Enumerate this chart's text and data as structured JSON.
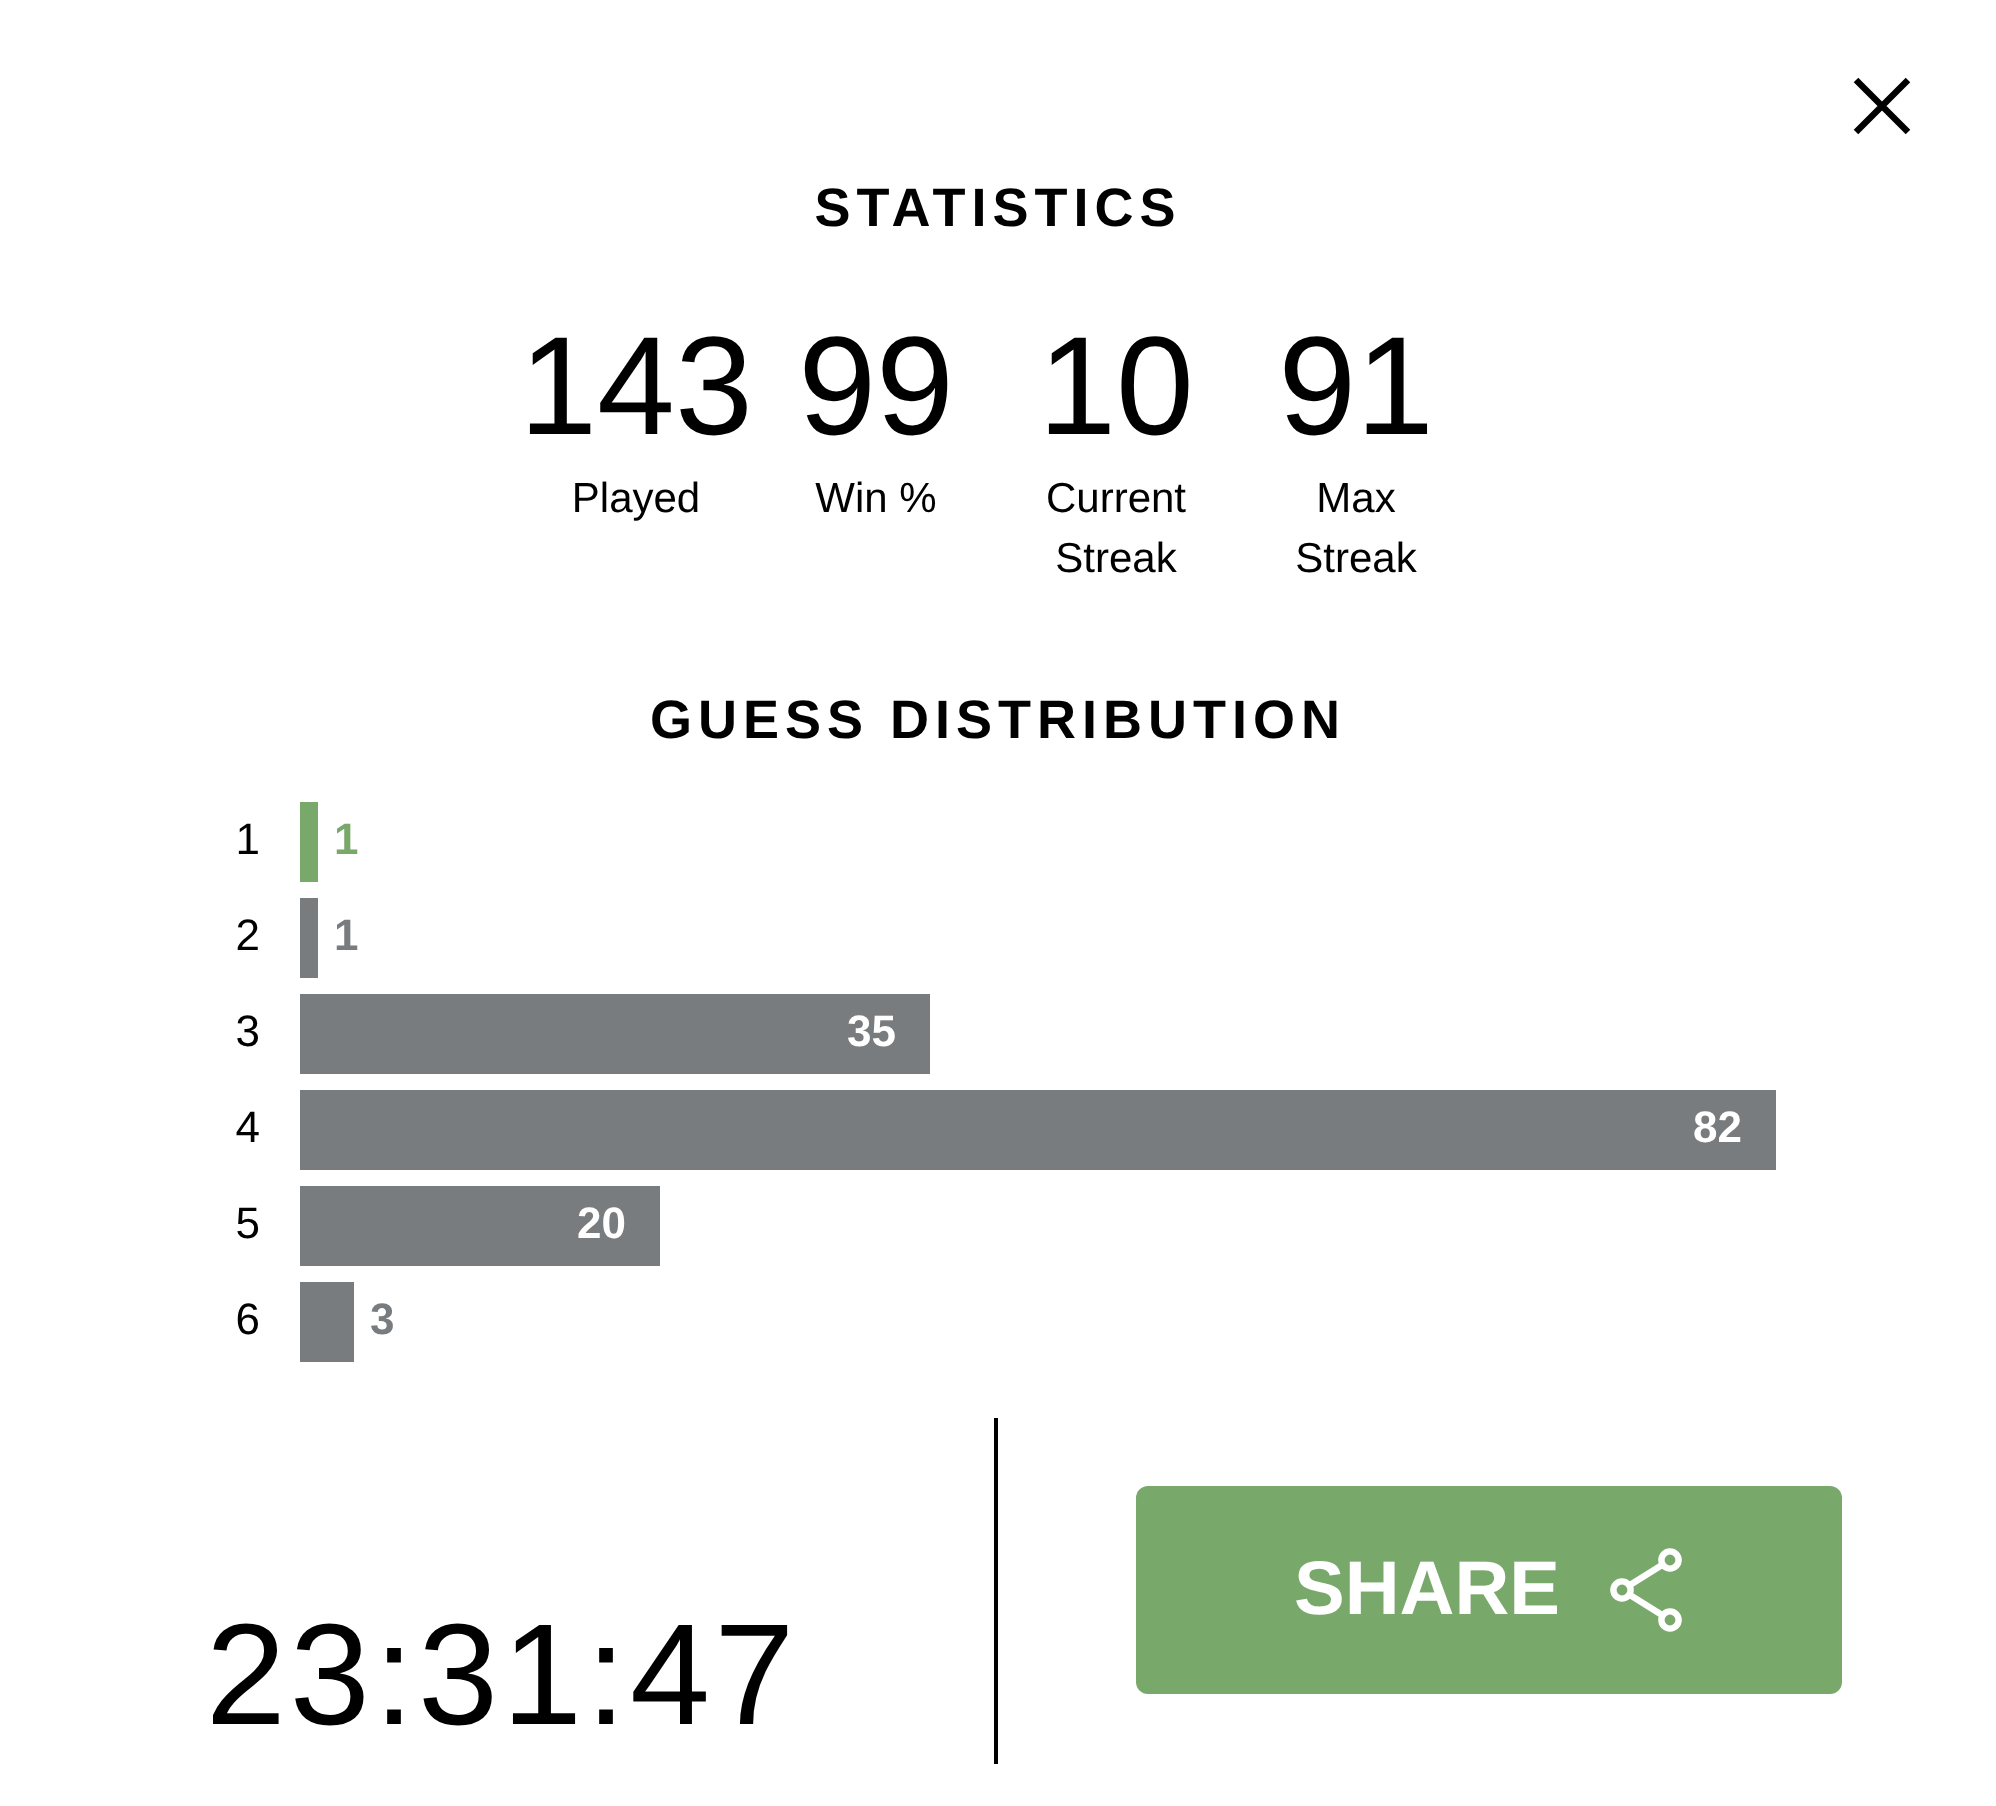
{
  "chart_data": [
    {
      "type": "other",
      "title": "STATISTICS",
      "categories": [
        "Played",
        "Win %",
        "Current Streak",
        "Max Streak"
      ],
      "values": [
        143,
        99,
        10,
        91
      ],
      "data_labels": true
    },
    {
      "type": "bar",
      "title": "GUESS DISTRIBUTION",
      "orientation": "horizontal",
      "categories": [
        "1",
        "2",
        "3",
        "4",
        "5",
        "6"
      ],
      "values": [
        1,
        1,
        35,
        82,
        20,
        3
      ],
      "colors": [
        "#79a86b",
        "#787c7e",
        "#787c7e",
        "#787c7e",
        "#787c7e",
        "#787c7e"
      ],
      "data_labels": true
    },
    {
      "type": "other",
      "annotations": [
        "23:31:47",
        "SHARE"
      ]
    }
  ]
}
